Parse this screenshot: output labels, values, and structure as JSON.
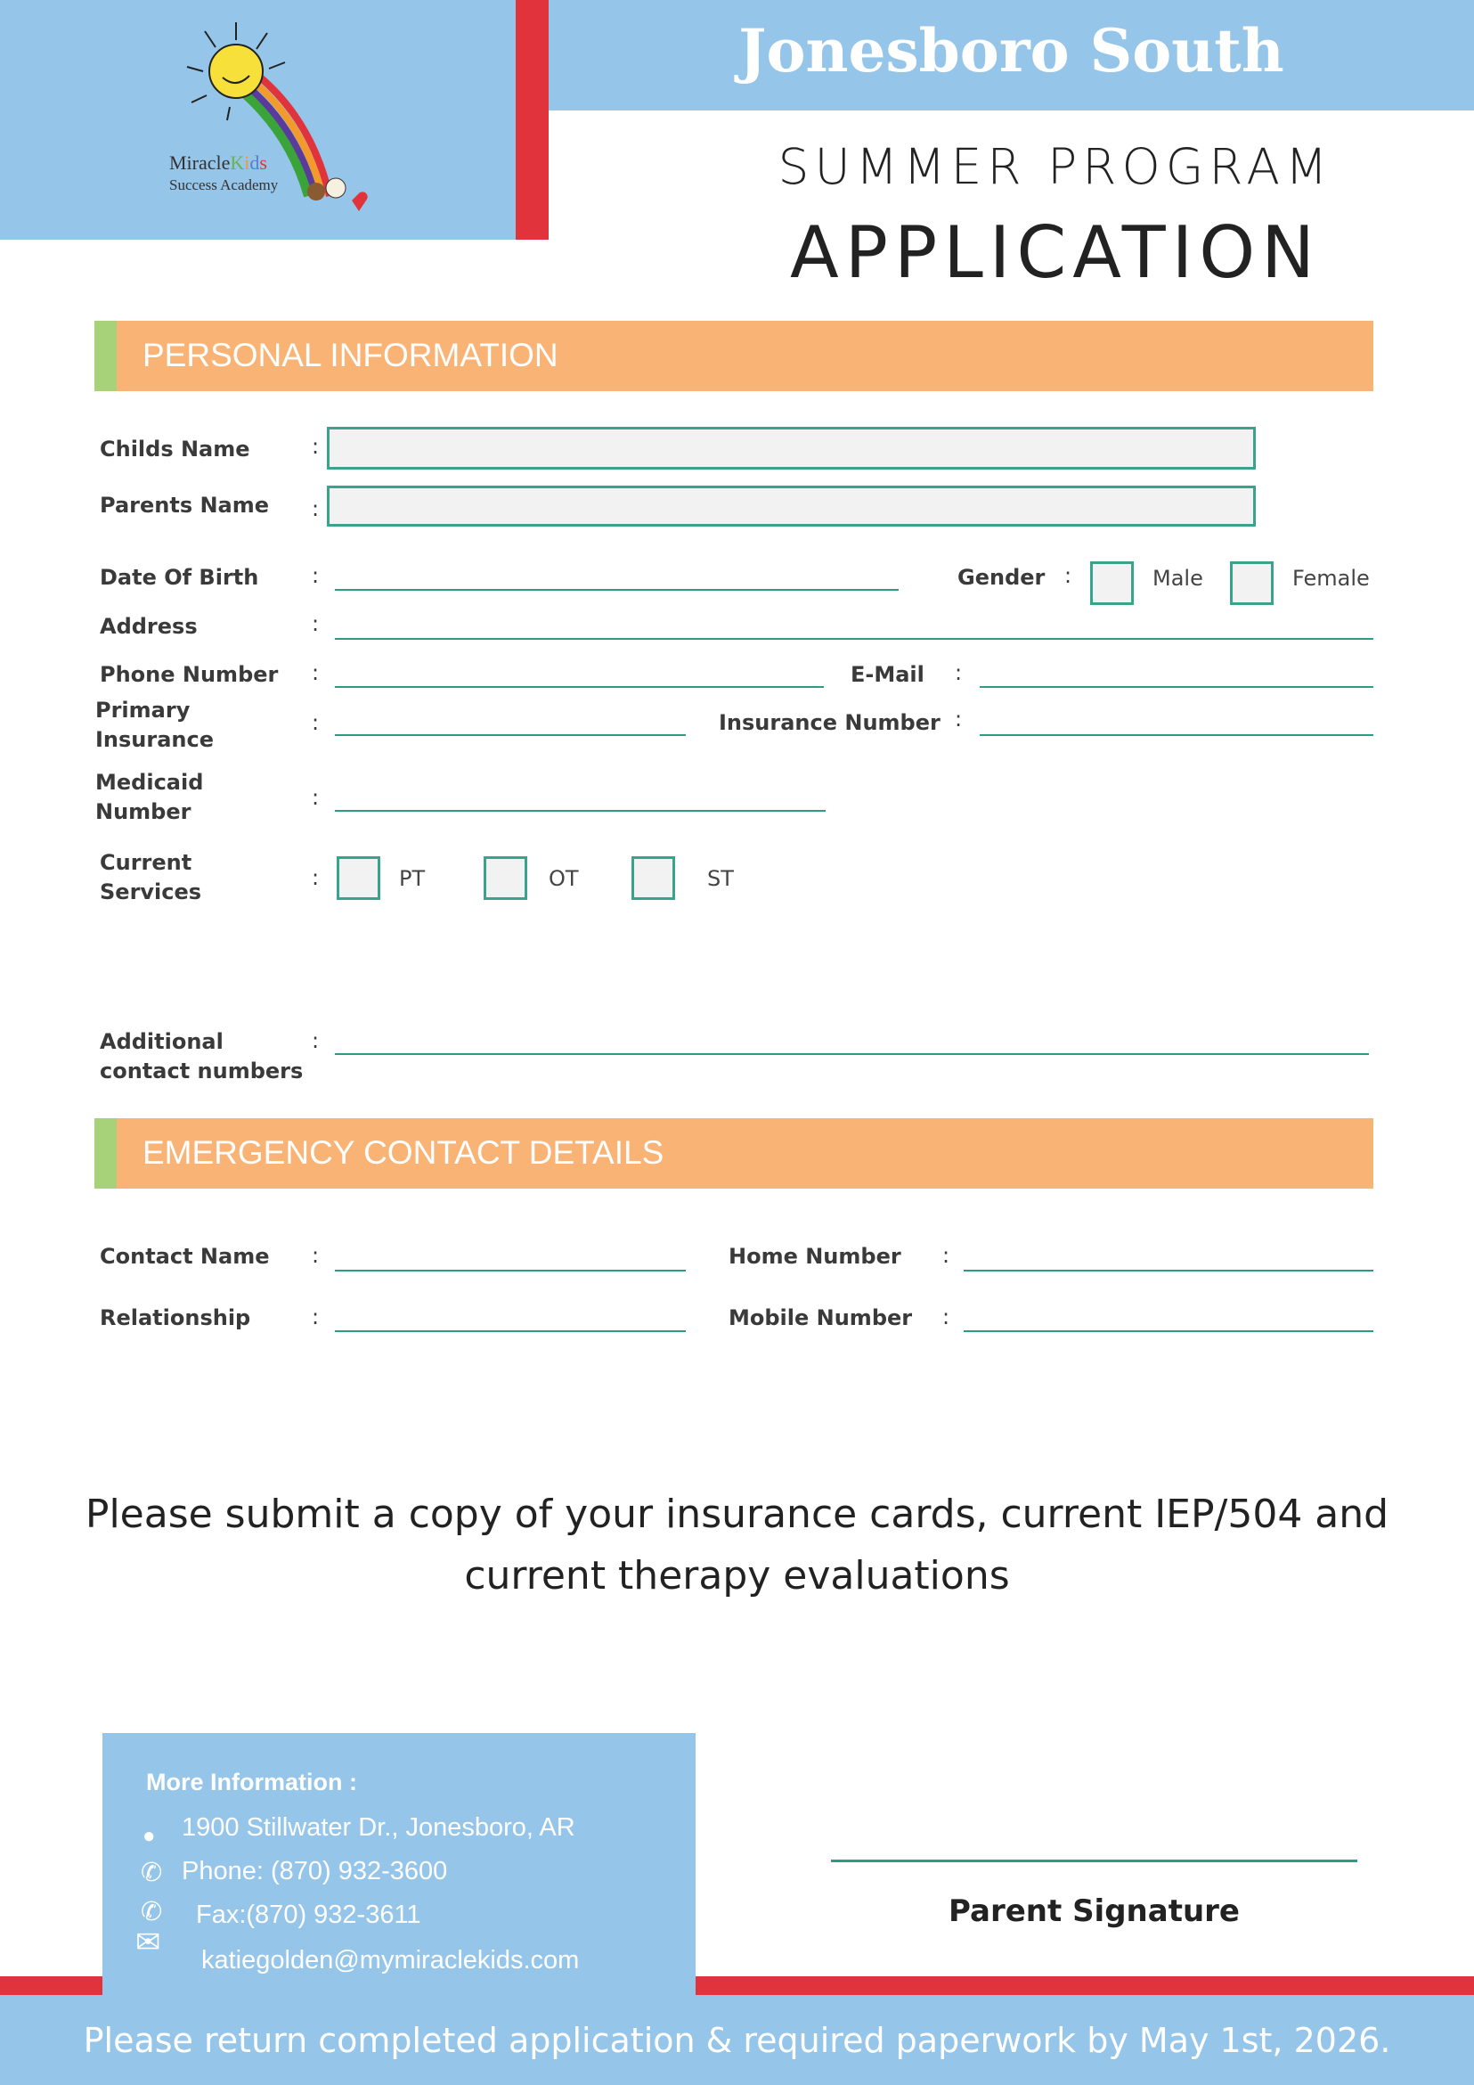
{
  "header": {
    "campus": "Jonesboro South",
    "subtitle": "SUMMER PROGRAM",
    "title": "APPLICATION",
    "logo_text": "MiracleKids Success Academy"
  },
  "colors": {
    "blue": "#95c5e9",
    "red": "#e0333c",
    "orange": "#f9b374",
    "green": "#a8d27a",
    "teal": "#2e9c85"
  },
  "personal": {
    "heading": "PERSONAL INFORMATION",
    "childs_name": "Childs Name",
    "parents_name": "Parents Name",
    "dob": "Date Of Birth",
    "gender": "Gender",
    "male": "Male",
    "female": "Female",
    "address": "Address",
    "phone": "Phone Number",
    "email": "E-Mail",
    "primary_insurance_1": "Primary",
    "primary_insurance_2": "Insurance",
    "insurance_number": "Insurance Number",
    "medicaid_1": "Medicaid",
    "medicaid_2": "Number",
    "services_1": "Current",
    "services_2": "Services",
    "pt": "PT",
    "ot": "OT",
    "st": "ST",
    "additional_1": "Additional",
    "additional_2": "contact numbers"
  },
  "emergency": {
    "heading": "EMERGENCY CONTACT DETAILS",
    "contact_name": "Contact Name",
    "home_number": "Home Number",
    "relationship": "Relationship",
    "mobile_number": "Mobile Number"
  },
  "notice": {
    "line1": "Please submit a copy of your insurance cards, current IEP/504 and",
    "line2": "current therapy evaluations"
  },
  "more_info": {
    "heading": "More Information :",
    "address": "1900 Stillwater Dr., Jonesboro, AR",
    "phone": "Phone: (870) 932-3600",
    "fax": "Fax:(870) 932-3611",
    "email": "katiegolden@mymiraclekids.com"
  },
  "signature": {
    "label": "Parent Signature"
  },
  "footer": {
    "text": "Please return completed application & required paperwork by May 1st, 2026."
  }
}
